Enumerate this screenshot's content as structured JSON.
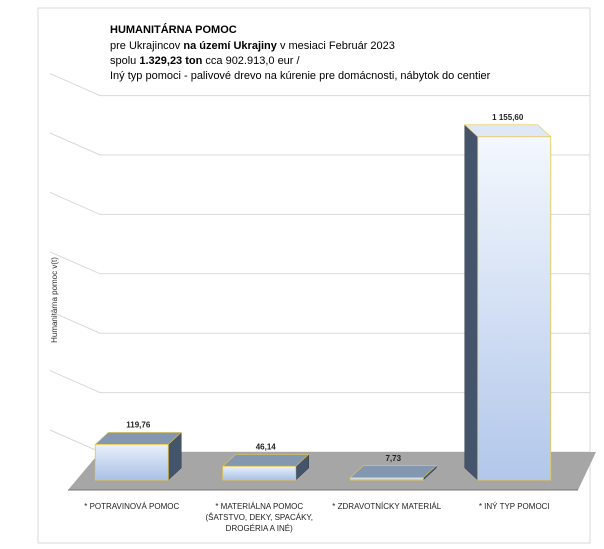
{
  "chart_data": {
    "type": "bar",
    "title": "HUMANITÁRNA POMOC",
    "subtitle": [
      [
        "pre Ukrajincov ",
        "na území Ukrajiny",
        "  v mesiaci Február  2023"
      ],
      [
        "spolu ",
        "1.329,23 ton",
        " cca   902.913,0 eur /"
      ],
      [
        "Iný typ  pomoci - palivové drevo na kúrenie pre domácnosti, nábytok do centier"
      ]
    ],
    "y_label": "Humanitárna pomoc v(t)",
    "categories": [
      "* POTRAVINOVÁ POMOC",
      "* MATERIÁLNA POMOC (ŠATSTVO, DEKY, SPACÁKY, DROGÉRIA A INÉ)",
      "* ZDRAVOTNÍCKY MATERIÁL",
      "* INÝ TYP POMOCI"
    ],
    "values": [
      119.76,
      46.14,
      7.73,
      1155.6
    ],
    "value_labels": [
      "119,76",
      "46,14",
      "7,73",
      "1 155,60"
    ],
    "color": "#b4c7e7",
    "ylim": [
      0,
      1200
    ],
    "yticks": [
      0,
      200,
      400,
      600,
      800,
      1000,
      1200
    ],
    "grid": true
  }
}
